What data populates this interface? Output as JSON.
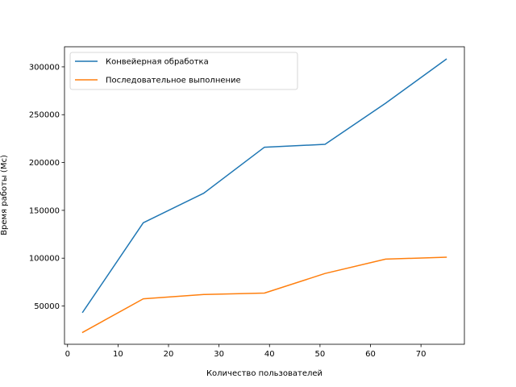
{
  "chart_data": {
    "type": "line",
    "title": "",
    "xlabel": "Количество пользователей",
    "ylabel": "Время работы (Мс)",
    "xlim": [
      -0.6,
      78.6
    ],
    "ylim": [
      10000,
      321000
    ],
    "xticks": [
      0,
      10,
      20,
      30,
      40,
      50,
      60,
      70
    ],
    "yticks": [
      50000,
      100000,
      150000,
      200000,
      250000,
      300000
    ],
    "grid": false,
    "legend_position": "upper-left",
    "series": [
      {
        "name": "Конвейерная обработка",
        "color": "#1f77b4",
        "x": [
          3,
          15,
          27,
          39,
          51,
          63,
          75
        ],
        "y": [
          43500,
          137000,
          168000,
          216000,
          219000,
          262000,
          308000
        ]
      },
      {
        "name": "Последовательное выполнение",
        "color": "#ff7f0e",
        "x": [
          3,
          15,
          27,
          39,
          51,
          63,
          75
        ],
        "y": [
          22500,
          57500,
          62000,
          63500,
          84000,
          99000,
          101000
        ]
      }
    ]
  }
}
